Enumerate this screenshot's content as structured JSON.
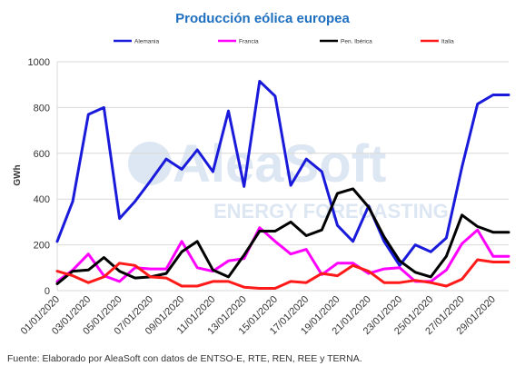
{
  "chart_data": {
    "type": "line",
    "title": "Producción eólica europea",
    "ylabel": "GWh",
    "xlabel": "",
    "ylim": [
      0,
      1000
    ],
    "yticks": [
      0,
      200,
      400,
      600,
      800,
      1000
    ],
    "legend_position": "top",
    "grid": true,
    "x": [
      "01/01/2020",
      "02/01/2020",
      "03/01/2020",
      "04/01/2020",
      "05/01/2020",
      "06/01/2020",
      "07/01/2020",
      "08/01/2020",
      "09/01/2020",
      "10/01/2020",
      "11/01/2020",
      "12/01/2020",
      "13/01/2020",
      "14/01/2020",
      "15/01/2020",
      "16/01/2020",
      "17/01/2020",
      "18/01/2020",
      "19/01/2020",
      "20/01/2020",
      "21/01/2020",
      "22/01/2020",
      "23/01/2020",
      "24/01/2020",
      "25/01/2020",
      "26/01/2020",
      "27/01/2020",
      "28/01/2020",
      "29/01/2020",
      "30/01/2020"
    ],
    "x_tick_labels": [
      "01/01/2020",
      "03/01/2020",
      "05/01/2020",
      "07/01/2020",
      "09/01/2020",
      "11/01/2020",
      "13/01/2020",
      "15/01/2020",
      "17/01/2020",
      "19/01/2020",
      "21/01/2020",
      "23/01/2020",
      "25/01/2020",
      "27/01/2020",
      "29/01/2020"
    ],
    "series": [
      {
        "name": "Alemania",
        "color": "#1a1adb",
        "values": [
          215,
          390,
          770,
          800,
          315,
          390,
          480,
          575,
          530,
          615,
          520,
          785,
          455,
          915,
          850,
          460,
          575,
          520,
          285,
          215,
          370,
          215,
          110,
          200,
          170,
          230,
          540,
          815,
          855,
          855
        ]
      },
      {
        "name": "Francia",
        "color": "#ff00ff",
        "values": [
          40,
          90,
          160,
          65,
          40,
          100,
          95,
          95,
          215,
          100,
          85,
          130,
          140,
          275,
          215,
          160,
          180,
          70,
          120,
          120,
          75,
          95,
          100,
          40,
          40,
          90,
          205,
          265,
          150,
          150
        ]
      },
      {
        "name": "Pen. Ibérica",
        "color": "#000000",
        "values": [
          30,
          85,
          90,
          145,
          85,
          55,
          60,
          75,
          170,
          215,
          90,
          60,
          155,
          260,
          260,
          300,
          240,
          265,
          425,
          445,
          365,
          235,
          130,
          80,
          60,
          150,
          330,
          280,
          255,
          255
        ]
      },
      {
        "name": "Italia",
        "color": "#ff1a1a",
        "values": [
          85,
          65,
          35,
          60,
          120,
          110,
          60,
          55,
          20,
          20,
          40,
          40,
          15,
          10,
          10,
          40,
          35,
          75,
          65,
          110,
          85,
          35,
          35,
          45,
          35,
          20,
          50,
          135,
          125,
          125
        ]
      }
    ],
    "n_points": 30
  },
  "watermark": {
    "brand": "AleaSoft",
    "tagline": "ENERGY FORECASTING"
  },
  "source": "Fuente: Elaborado por AleaSoft con datos de ENTSO-E, RTE, REN, REE y TERNA."
}
